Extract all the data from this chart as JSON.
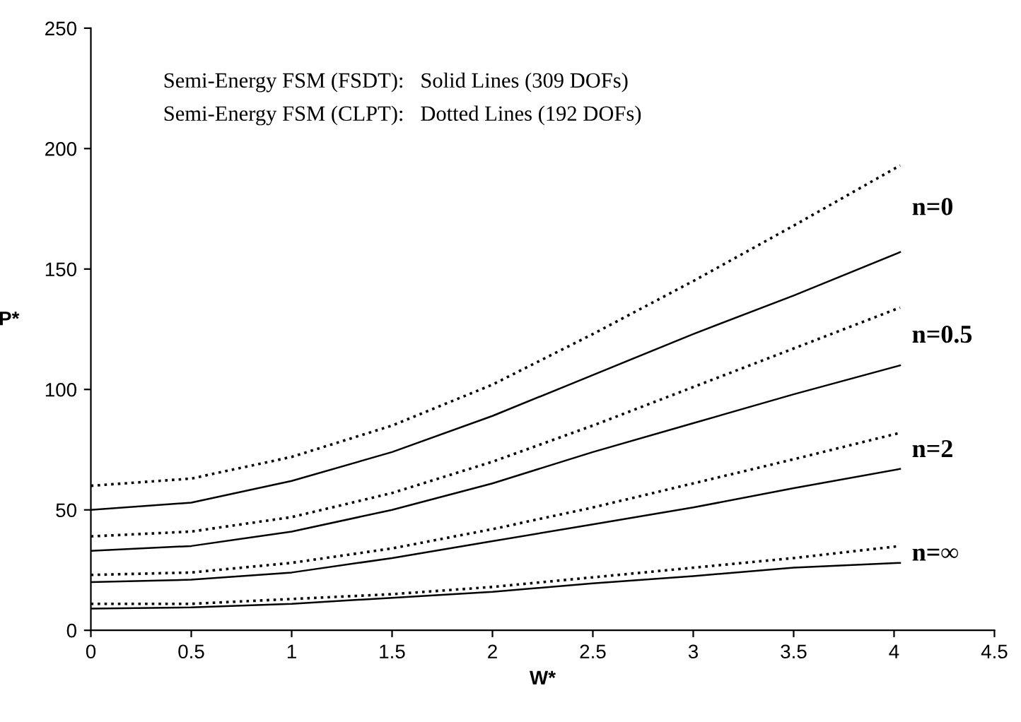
{
  "chart_data": {
    "type": "line",
    "xlabel": "W*",
    "ylabel": "P*",
    "xlim": [
      0,
      4.5
    ],
    "xticks": [
      0,
      0.5,
      1,
      1.5,
      2,
      2.5,
      3,
      3.5,
      4,
      4.5
    ],
    "ylim": [
      0,
      250
    ],
    "yticks": [
      0,
      50,
      100,
      150,
      200,
      250
    ],
    "grid": false,
    "legend": false,
    "marker": "none",
    "x": [
      0,
      0.5,
      1,
      1.5,
      2,
      2.5,
      3,
      3.5,
      4.03
    ],
    "series": [
      {
        "color": "#000000",
        "line_style": "dotted",
        "values": [
          60,
          63,
          72,
          85,
          102,
          123,
          145,
          168,
          193
        ]
      },
      {
        "name": "n=0",
        "color": "#000000",
        "line_style": "solid",
        "values": [
          50,
          53,
          62,
          74,
          89,
          106,
          123,
          139,
          157
        ]
      },
      {
        "color": "#000000",
        "line_style": "dotted",
        "values": [
          39,
          41,
          47,
          57,
          70,
          85,
          101,
          117,
          134
        ]
      },
      {
        "name": "n=0.5",
        "color": "#000000",
        "line_style": "solid",
        "values": [
          33,
          35,
          41,
          50,
          61,
          74,
          86,
          98,
          110
        ]
      },
      {
        "color": "#000000",
        "line_style": "dotted",
        "values": [
          23,
          24,
          28,
          34,
          42,
          51,
          61,
          71,
          82
        ]
      },
      {
        "name": "n=2",
        "color": "#000000",
        "line_style": "solid",
        "values": [
          20,
          21,
          24,
          30,
          37,
          44,
          51,
          59,
          67
        ]
      },
      {
        "color": "#000000",
        "line_style": "dotted",
        "values": [
          11,
          11,
          13,
          15,
          18,
          22,
          26,
          30,
          35
        ]
      },
      {
        "name": "n=∞",
        "color": "#000000",
        "line_style": "solid",
        "values": [
          9,
          9.5,
          11,
          13.5,
          16,
          19.5,
          22.5,
          26,
          28
        ]
      }
    ],
    "annotations": [
      "Semi-Energy FSM (FSDT):   Solid Lines (309 DOFs)",
      "Semi-Energy FSM (CLPT):   Dotted Lines (192 DOFs)"
    ]
  }
}
